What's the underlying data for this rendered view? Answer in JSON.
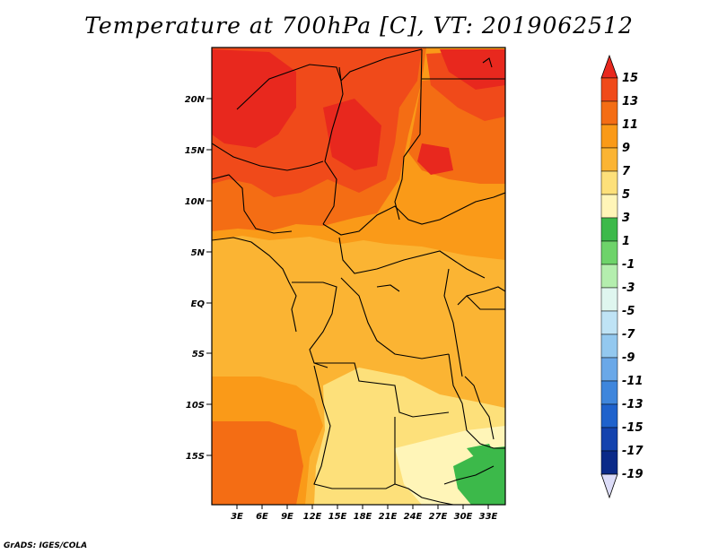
{
  "title": "Temperature at 700hPa [C], VT: 2019062512",
  "credit": "GrADS: IGES/COLA",
  "map": {
    "lat_labels": [
      "20N",
      "15N",
      "10N",
      "5N",
      "EQ",
      "5S",
      "10S",
      "15S"
    ],
    "lon_labels": [
      "3E",
      "6E",
      "9E",
      "12E",
      "15E",
      "18E",
      "21E",
      "24E",
      "27E",
      "30E",
      "33E"
    ]
  },
  "colorbar": {
    "labels": [
      "15",
      "13",
      "11",
      "9",
      "7",
      "5",
      "3",
      "1",
      "-1",
      "-3",
      "-5",
      "-7",
      "-9",
      "-11",
      "-13",
      "-15",
      "-17",
      "-19"
    ],
    "colors": {
      "above_15": "#e8281e",
      "13_15": "#f04a1a",
      "11_13": "#f46d14",
      "9_11": "#fa9a18",
      "7_9": "#fbb433",
      "5_7": "#fde07a",
      "3_5": "#fff5b8",
      "1_3": "#3cb94a",
      "-1_1": "#6ed36a",
      "-3_-1": "#b4eeae",
      "-5_-3": "#dff6ef",
      "-7_-5": "#bfe3f5",
      "-9_-7": "#93c8ef",
      "-11_-9": "#6aa8e8",
      "-13_-11": "#3f86dc",
      "-15_-13": "#1f62cc",
      "-17_-15": "#1443ae",
      "-19_-17": "#0b2a88",
      "below_-19": "#dcdcf8"
    }
  }
}
